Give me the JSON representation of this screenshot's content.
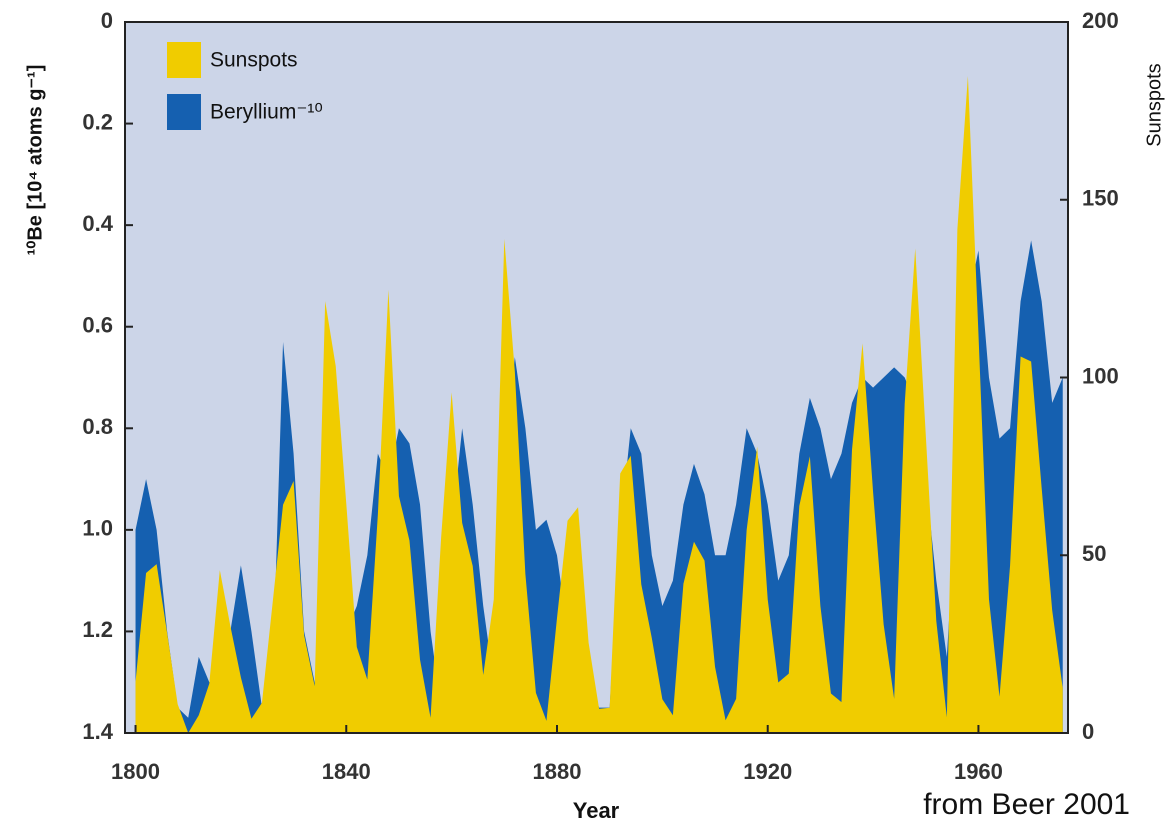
{
  "chart_data": {
    "type": "area",
    "y_label": "¹⁰Be [10⁴ atoms g⁻¹]",
    "y2_label": "Sunspots",
    "x_label": "Year",
    "annotation": "from Beer 2001",
    "x": [
      1800,
      1802,
      1804,
      1806,
      1808,
      1810,
      1812,
      1814,
      1816,
      1818,
      1820,
      1822,
      1824,
      1826,
      1828,
      1830,
      1832,
      1834,
      1836,
      1838,
      1840,
      1842,
      1844,
      1846,
      1848,
      1850,
      1852,
      1854,
      1856,
      1858,
      1860,
      1862,
      1864,
      1866,
      1868,
      1870,
      1872,
      1874,
      1876,
      1878,
      1880,
      1882,
      1884,
      1886,
      1888,
      1890,
      1892,
      1894,
      1896,
      1898,
      1900,
      1902,
      1904,
      1906,
      1908,
      1910,
      1912,
      1914,
      1916,
      1918,
      1920,
      1922,
      1924,
      1926,
      1928,
      1930,
      1932,
      1934,
      1936,
      1938,
      1940,
      1942,
      1944,
      1946,
      1948,
      1950,
      1952,
      1954,
      1956,
      1958,
      1960,
      1962,
      1964,
      1966,
      1968,
      1970,
      1972,
      1974,
      1976
    ],
    "series": [
      {
        "name": "Beryllium⁻¹⁰",
        "color": "#1560b0",
        "axis": "y",
        "values": [
          1.0,
          0.9,
          1.0,
          1.2,
          1.35,
          1.37,
          1.25,
          1.3,
          1.25,
          1.2,
          1.07,
          1.2,
          1.35,
          1.3,
          0.63,
          0.85,
          1.2,
          1.3,
          1.35,
          1.3,
          1.2,
          1.15,
          1.05,
          0.85,
          0.9,
          0.8,
          0.83,
          0.95,
          1.2,
          1.35,
          1.0,
          0.8,
          0.95,
          1.15,
          1.3,
          0.85,
          0.66,
          0.8,
          1.0,
          0.98,
          1.05,
          1.2,
          1.25,
          1.3,
          1.35,
          1.35,
          1.0,
          0.8,
          0.85,
          1.05,
          1.15,
          1.1,
          0.95,
          0.87,
          0.93,
          1.05,
          1.05,
          0.95,
          0.8,
          0.85,
          0.95,
          1.1,
          1.05,
          0.85,
          0.74,
          0.8,
          0.9,
          0.85,
          0.75,
          0.7,
          0.72,
          0.7,
          0.68,
          0.7,
          0.75,
          0.9,
          1.1,
          1.25,
          0.9,
          0.55,
          0.45,
          0.7,
          0.82,
          0.8,
          0.55,
          0.43,
          0.55,
          0.75,
          0.7
        ]
      },
      {
        "name": "Sunspots",
        "color": "#f0cc00",
        "axis": "y2",
        "values": [
          14.5,
          45,
          47.5,
          28.1,
          8.1,
          0,
          5,
          13.9,
          45.8,
          30.1,
          15.6,
          4,
          8.5,
          36.3,
          64.2,
          70.9,
          27.5,
          13.2,
          121.5,
          103.2,
          64.6,
          24.2,
          15,
          61.5,
          124.7,
          66.6,
          54.1,
          20.6,
          4.3,
          54.8,
          95.8,
          59.1,
          47,
          16.3,
          37.6,
          139,
          101.6,
          44.7,
          11.3,
          3.4,
          32.3,
          59.7,
          63.5,
          25.4,
          6.8,
          7.1,
          73,
          78,
          41.8,
          26.7,
          9.5,
          5,
          42,
          53.8,
          48.5,
          18.6,
          3.6,
          9.6,
          57.1,
          80.6,
          37.6,
          14.2,
          16.7,
          63.9,
          77.8,
          35.7,
          11.1,
          8.7,
          79.7,
          109.6,
          67.8,
          30.6,
          9.6,
          92.6,
          136.3,
          83.9,
          31.5,
          4.4,
          141.7,
          184.8,
          112.3,
          37.6,
          10.2,
          47,
          105.9,
          104.5,
          68.9,
          34.5,
          12.6
        ]
      }
    ],
    "legend_order": [
      1,
      0
    ],
    "xlim": [
      1798,
      1977
    ],
    "xticks": [
      1800,
      1840,
      1880,
      1920,
      1960
    ],
    "ylim": [
      0,
      1.4
    ],
    "y_inverted": true,
    "yticks": [
      0,
      0.2,
      0.4,
      0.6,
      0.8,
      {
        "value": 1,
        "label": "1.0"
      },
      1.2,
      1.4
    ],
    "y2lim": [
      0,
      200
    ],
    "y2ticks": [
      0,
      50,
      100,
      150,
      200
    ],
    "background": "#ccd5e8",
    "legend": "upper left"
  }
}
